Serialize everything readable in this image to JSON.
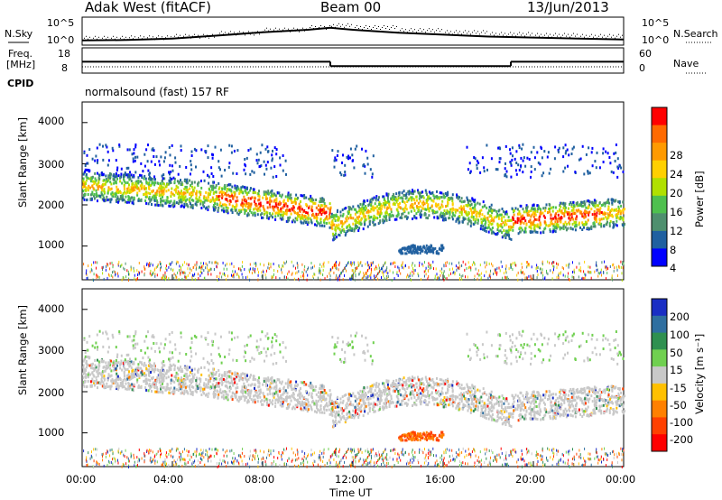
{
  "header": {
    "station": "Adak West (fitACF)",
    "beam": "Beam 00",
    "date": "13/Jun/2013"
  },
  "side_labels": {
    "n_sky": "N.Sky",
    "n_search": "N.Search",
    "freq_line1": "Freq.",
    "freq_line2": "[MHz]",
    "nave": "Nave",
    "cpid": "CPID",
    "cpid_text": "normalsound (fast) 157 RF"
  },
  "chart_data": [
    {
      "type": "line",
      "name": "noise",
      "left_ticks": [
        "10^5",
        "10^0"
      ],
      "right_ticks": [
        "10^5",
        "10^0"
      ],
      "description": "N.Sky and N.Search noise vs time",
      "x": [
        0,
        2,
        4,
        6,
        8,
        10,
        11,
        12,
        14,
        16,
        18,
        20,
        22,
        24
      ],
      "y_sky_log10": [
        0.4,
        0.5,
        0.8,
        1.4,
        2.1,
        2.6,
        3.0,
        2.6,
        2.0,
        1.6,
        1.2,
        1.0,
        0.8,
        0.6
      ]
    },
    {
      "type": "line",
      "name": "freq-nave",
      "left_ticks": [
        "18",
        "8"
      ],
      "right_ticks": [
        "60",
        "0"
      ],
      "segments": [
        {
          "x": [
            0,
            11
          ],
          "freq": 12
        },
        {
          "x": [
            11,
            19
          ],
          "freq": 10
        },
        {
          "x": [
            19,
            24
          ],
          "freq": 12
        }
      ]
    },
    {
      "type": "heatmap",
      "name": "power",
      "ylabel": "Slant Range [km]",
      "yticks": [
        1000,
        2000,
        3000,
        4000
      ],
      "ylim": [
        180,
        4500
      ],
      "colorbar_label": "Power [dB]",
      "colorbar_ticks": [
        "28",
        "24",
        "20",
        "16",
        "12",
        "8",
        "4"
      ],
      "colorbar_colors": [
        "#ff0000",
        "#ff6a00",
        "#ff9a00",
        "#ffd000",
        "#b0e000",
        "#4ec04e",
        "#4e8f6e",
        "#2060a0",
        "#0000ff"
      ]
    },
    {
      "type": "heatmap",
      "name": "velocity",
      "ylabel": "Slant Range [km]",
      "yticks": [
        1000,
        2000,
        3000,
        4000
      ],
      "ylim": [
        180,
        4500
      ],
      "colorbar_label": "Velocity [m s⁻¹]",
      "colorbar_ticks": [
        "200",
        "100",
        "50",
        "15",
        "-15",
        "-50",
        "-100",
        "-200"
      ],
      "colorbar_colors": [
        "#1a2ec4",
        "#2f6fa0",
        "#2f9050",
        "#70d050",
        "#c8c8c8",
        "#ffc000",
        "#ff8000",
        "#ff4000",
        "#ff0000"
      ]
    }
  ],
  "x_axis": {
    "label": "Time UT",
    "ticks": [
      "00:00",
      "04:00",
      "08:00",
      "12:00",
      "16:00",
      "20:00",
      "00:00"
    ]
  }
}
